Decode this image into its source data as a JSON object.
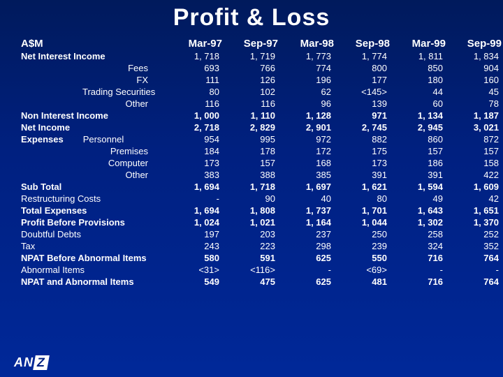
{
  "title": "Profit & Loss",
  "title_fontsize": 34,
  "title_color": "#ffffff",
  "currency_label": "A$M",
  "columns": [
    "Mar-97",
    "Sep-97",
    "Mar-98",
    "Sep-98",
    "Mar-99",
    "Sep-99"
  ],
  "rows": [
    {
      "label": "Net Interest Income",
      "style": "bold",
      "values": [
        "1, 718",
        "1, 719",
        "1, 773",
        "1, 774",
        "1, 811",
        "1, 834"
      ],
      "value_style": "normal"
    },
    {
      "label": "Fees",
      "style": "indent",
      "values": [
        "693",
        "766",
        "774",
        "800",
        "850",
        "904"
      ],
      "value_style": "normal"
    },
    {
      "label": "FX",
      "style": "indent",
      "values": [
        "111",
        "126",
        "196",
        "177",
        "180",
        "160"
      ],
      "value_style": "normal"
    },
    {
      "label": "Trading Securities",
      "style": "indent",
      "values": [
        "80",
        "102",
        "62",
        "<145>",
        "44",
        "45"
      ],
      "value_style": "normal"
    },
    {
      "label": "Other",
      "style": "indent",
      "values": [
        "116",
        "116",
        "96",
        "139",
        "60",
        "78"
      ],
      "value_style": "normal"
    },
    {
      "label": "Non Interest Income",
      "style": "bold",
      "values": [
        "1, 000",
        "1, 110",
        "1, 128",
        "971",
        "1, 134",
        "1, 187"
      ],
      "value_style": "bold"
    },
    {
      "label": "Net Income",
      "style": "bold",
      "values": [
        "2, 718",
        "2, 829",
        "2, 901",
        "2, 745",
        "2, 945",
        "3, 021"
      ],
      "value_style": "bold"
    },
    {
      "label": "Expenses",
      "sublabel": "Personnel",
      "style": "two-part",
      "values": [
        "954",
        "995",
        "972",
        "882",
        "860",
        "872"
      ],
      "value_style": "normal"
    },
    {
      "label": "Premises",
      "style": "indent",
      "values": [
        "184",
        "178",
        "172",
        "175",
        "157",
        "157"
      ],
      "value_style": "normal"
    },
    {
      "label": "Computer",
      "style": "indent",
      "values": [
        "173",
        "157",
        "168",
        "173",
        "186",
        "158"
      ],
      "value_style": "normal"
    },
    {
      "label": "Other",
      "style": "indent",
      "values": [
        "383",
        "388",
        "385",
        "391",
        "391",
        "422"
      ],
      "value_style": "normal"
    },
    {
      "label": "Sub Total",
      "style": "bold",
      "values": [
        "1, 694",
        "1, 718",
        "1, 697",
        "1, 621",
        "1, 594",
        "1, 609"
      ],
      "value_style": "bold"
    },
    {
      "label": "Restructuring Costs",
      "style": "normal",
      "values": [
        "-",
        "90",
        "40",
        "80",
        "49",
        "42"
      ],
      "value_style": "normal"
    },
    {
      "label": "Total Expenses",
      "style": "bold",
      "values": [
        "1, 694",
        "1, 808",
        "1, 737",
        "1, 701",
        "1, 643",
        "1, 651"
      ],
      "value_style": "bold"
    },
    {
      "label": "Profit Before Provisions",
      "style": "bold",
      "values": [
        "1, 024",
        "1, 021",
        "1, 164",
        "1, 044",
        "1, 302",
        "1, 370"
      ],
      "value_style": "bold"
    },
    {
      "label": "Doubtful Debts",
      "style": "normal",
      "values": [
        "197",
        "203",
        "237",
        "250",
        "258",
        "252"
      ],
      "value_style": "normal"
    },
    {
      "label": "Tax",
      "style": "normal",
      "values": [
        "243",
        "223",
        "298",
        "239",
        "324",
        "352"
      ],
      "value_style": "normal"
    },
    {
      "label": "NPAT Before Abnormal Items",
      "style": "bold",
      "values": [
        "580",
        "591",
        "625",
        "550",
        "716",
        "764"
      ],
      "value_style": "bold"
    },
    {
      "label": "Abnormal Items",
      "style": "normal",
      "values": [
        "<31>",
        "<116>",
        "-",
        "<69>",
        "-",
        "-"
      ],
      "value_style": "normal"
    },
    {
      "label": "NPAT and Abnormal Items",
      "style": "bold",
      "values": [
        "549",
        "475",
        "625",
        "481",
        "716",
        "764"
      ],
      "value_style": "bold"
    }
  ],
  "logo_text_a": "AN",
  "logo_text_z": "Z",
  "background_gradient": [
    "#001a5c",
    "#002899"
  ],
  "text_color": "#ffffff"
}
